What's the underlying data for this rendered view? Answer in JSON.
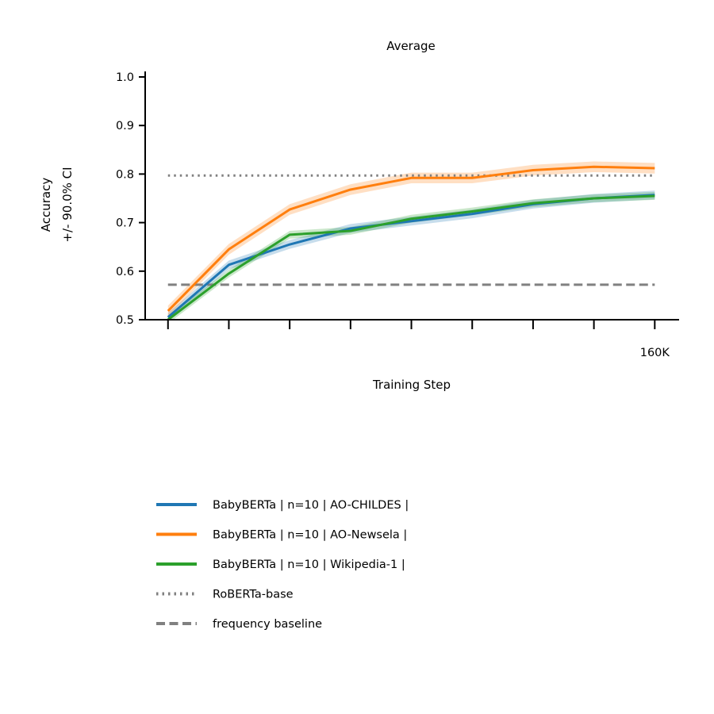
{
  "chart_data": {
    "type": "line",
    "title": "Average",
    "xlabel": "Training Step",
    "ylabel_lines": [
      "Accuracy",
      "+/- 90.0% CI"
    ],
    "x": [
      0,
      20000,
      40000,
      60000,
      80000,
      100000,
      120000,
      140000,
      160000
    ],
    "x_tick_labels": [
      "",
      "",
      "",
      "",
      "",
      "",
      "",
      "",
      "160K"
    ],
    "xlim": [
      -7500,
      168000
    ],
    "ylim": [
      0.5,
      1.0
    ],
    "yticks": [
      0.5,
      0.6,
      0.7,
      0.8,
      0.9,
      1.0
    ],
    "ytick_labels": [
      "0.5",
      "0.6",
      "0.7",
      "0.8",
      "0.9",
      "1.0"
    ],
    "grid": false,
    "legend_position": "below",
    "series": [
      {
        "name": "BabyBERTa | n=10 | AO-CHILDES |",
        "color": "#1f77b4",
        "style": "solid",
        "values": [
          0.505,
          0.613,
          0.655,
          0.688,
          0.703,
          0.718,
          0.738,
          0.75,
          0.757
        ],
        "ci": 0.009
      },
      {
        "name": "BabyBERTa | n=10 | AO-Newsela |",
        "color": "#ff7f0e",
        "style": "solid",
        "values": [
          0.518,
          0.645,
          0.727,
          0.768,
          0.792,
          0.792,
          0.808,
          0.815,
          0.812
        ],
        "ci": 0.011
      },
      {
        "name": "BabyBERTa | n=10 | Wikipedia-1 |",
        "color": "#2ca02c",
        "style": "solid",
        "values": [
          0.5,
          0.595,
          0.675,
          0.683,
          0.708,
          0.723,
          0.74,
          0.75,
          0.755
        ],
        "ci": 0.008
      },
      {
        "name": "RoBERTa-base",
        "color": "#808080",
        "style": "dotted",
        "constant": 0.797
      },
      {
        "name": "frequency baseline",
        "color": "#808080",
        "style": "dashed",
        "constant": 0.572
      }
    ]
  }
}
